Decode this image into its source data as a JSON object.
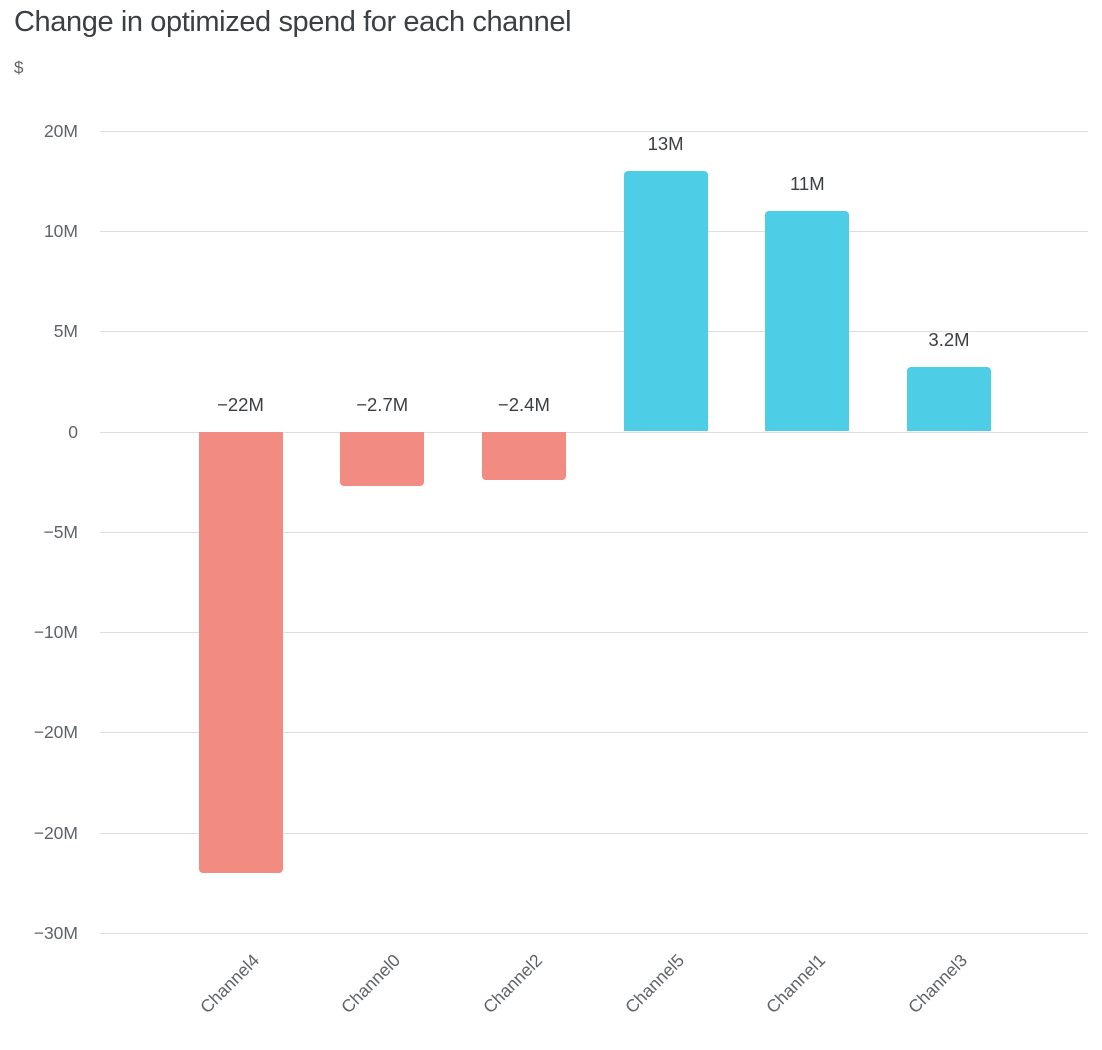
{
  "chart_data": {
    "type": "bar",
    "title": "Change in optimized spend for each channel",
    "ylabel": "$",
    "xlabel": "",
    "categories": [
      "Channel4",
      "Channel0",
      "Channel2",
      "Channel5",
      "Channel1",
      "Channel3"
    ],
    "values": [
      -22,
      -2.7,
      -2.4,
      13,
      11,
      3.2
    ],
    "value_unit": "millions of dollars",
    "bar_labels": [
      "−22M",
      "−2.7M",
      "−2.4M",
      "13M",
      "11M",
      "3.2M"
    ],
    "yticks": [
      {
        "value": 15,
        "label": "20M"
      },
      {
        "value": 10,
        "label": "10M"
      },
      {
        "value": 5,
        "label": "5M"
      },
      {
        "value": 0,
        "label": "0"
      },
      {
        "value": -5,
        "label": "−5M"
      },
      {
        "value": -10,
        "label": "−10M"
      },
      {
        "value": -15,
        "label": "−20M"
      },
      {
        "value": -20,
        "label": "−20M"
      },
      {
        "value": -25,
        "label": "−30M"
      }
    ],
    "ylim": [
      -25,
      15
    ],
    "grid": true,
    "legend": "none",
    "colors": {
      "positive_bar": "#4ecee6",
      "negative_bar": "#f28b82",
      "title_text": "#3c4043",
      "axis_text": "#5f6368",
      "gridline": "#dcdee1"
    }
  }
}
